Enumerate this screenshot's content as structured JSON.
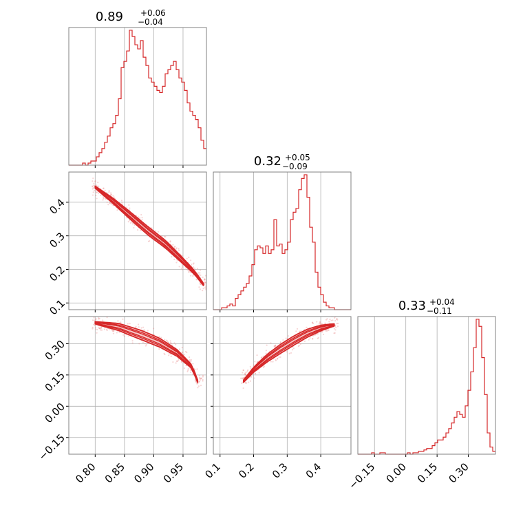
{
  "colors": {
    "main": "#d62728",
    "fill": "#f4b6b8",
    "scatter": "#e8898a"
  },
  "titles": [
    {
      "center": "0.89",
      "sup": "+0.06",
      "sub": "−0.04"
    },
    {
      "center": "0.32",
      "sup": "+0.05",
      "sub": "−0.09"
    },
    {
      "center": "0.33",
      "sup": "+0.04",
      "sub": "−0.11"
    }
  ],
  "chart_data": [
    {
      "type": "histogram",
      "position": "diagonal-1",
      "xlim": [
        0.755,
        0.99
      ],
      "x_ticks": [
        "0.80",
        "0.85",
        "0.90",
        "0.95"
      ],
      "bin_start": 0.755,
      "bin_width": 0.0047,
      "counts": [
        0,
        0,
        0,
        0,
        0,
        1,
        0,
        1,
        2,
        2,
        4,
        6,
        8,
        11,
        14,
        18,
        20,
        24,
        32,
        47,
        50,
        55,
        65,
        62,
        58,
        56,
        60,
        52,
        48,
        42,
        40,
        38,
        36,
        35,
        38,
        44,
        46,
        48,
        50,
        46,
        42,
        40,
        36,
        30,
        26,
        24,
        22,
        18,
        12,
        8
      ]
    },
    {
      "type": "histogram",
      "position": "diagonal-2",
      "xlim": [
        0.08,
        0.49
      ],
      "x_ticks": [
        "0.1",
        "0.2",
        "0.3",
        "0.4"
      ],
      "bin_start": 0.08,
      "bin_width": 0.0082,
      "counts": [
        0,
        0,
        0,
        1,
        1,
        2,
        3,
        2,
        6,
        8,
        10,
        12,
        14,
        18,
        24,
        32,
        34,
        33,
        30,
        34,
        30,
        32,
        48,
        34,
        35,
        30,
        32,
        36,
        48,
        52,
        54,
        64,
        70,
        72,
        60,
        44,
        36,
        20,
        12,
        8,
        4,
        2,
        1,
        1,
        0,
        0,
        0,
        0,
        0,
        0
      ]
    },
    {
      "type": "histogram",
      "position": "diagonal-3",
      "xlim": [
        -0.23,
        0.43
      ],
      "x_ticks": [
        "−0.15",
        "0.00",
        "0.15",
        "0.30"
      ],
      "bin_start": -0.23,
      "bin_width": 0.0132,
      "counts": [
        0,
        0,
        0,
        0,
        0,
        1,
        0,
        0,
        1,
        1,
        0,
        0,
        0,
        0,
        0,
        0,
        0,
        0,
        1,
        0,
        1,
        1,
        2,
        2,
        3,
        4,
        4,
        6,
        8,
        10,
        10,
        12,
        15,
        18,
        22,
        26,
        30,
        28,
        26,
        34,
        45,
        58,
        75,
        95,
        90,
        68,
        42,
        15,
        5,
        2
      ]
    },
    {
      "type": "scatter",
      "position": "row-2-col-1",
      "xlim": [
        0.755,
        0.99
      ],
      "ylim": [
        0.08,
        0.49
      ],
      "y_ticks": [
        "0.1",
        "0.2",
        "0.3",
        "0.4"
      ],
      "ridge": {
        "x": [
          0.8,
          0.83,
          0.86,
          0.89,
          0.92,
          0.95,
          0.97,
          0.985
        ],
        "y": [
          0.445,
          0.405,
          0.36,
          0.315,
          0.275,
          0.225,
          0.19,
          0.155
        ]
      },
      "band_width": 0.022
    },
    {
      "type": "scatter",
      "position": "row-3-col-1",
      "xlim": [
        0.755,
        0.99
      ],
      "ylim": [
        -0.23,
        0.43
      ],
      "y_ticks": [
        "−0.15",
        "0.00",
        "0.15",
        "0.30"
      ],
      "ridge": {
        "x": [
          0.8,
          0.84,
          0.88,
          0.91,
          0.94,
          0.965,
          0.975
        ],
        "y": [
          0.4,
          0.38,
          0.34,
          0.305,
          0.255,
          0.19,
          0.12
        ]
      },
      "band_width": 0.04
    },
    {
      "type": "scatter",
      "position": "row-3-col-2",
      "xlim": [
        0.08,
        0.49
      ],
      "ylim": [
        -0.23,
        0.43
      ],
      "ridge": {
        "x": [
          0.17,
          0.2,
          0.24,
          0.28,
          0.32,
          0.36,
          0.4,
          0.44
        ],
        "y": [
          0.12,
          0.175,
          0.23,
          0.275,
          0.315,
          0.35,
          0.375,
          0.39
        ]
      },
      "band_width": 0.04
    }
  ]
}
